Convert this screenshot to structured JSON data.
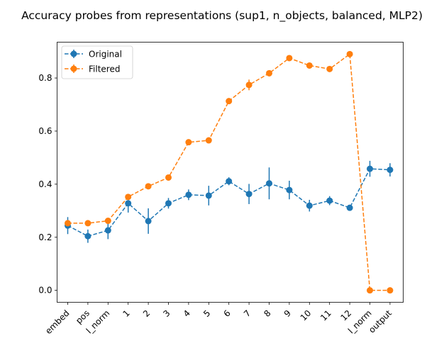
{
  "chart_data": {
    "type": "line",
    "title": "Accuracy probes from representations (sup1, n_objects, balanced, MLP2)",
    "xlabel": "",
    "ylabel": "",
    "categories": [
      "embed",
      "pos",
      "l_norm",
      "1",
      "2",
      "3",
      "4",
      "5",
      "6",
      "7",
      "8",
      "9",
      "10",
      "11",
      "12",
      "l_norm",
      "output"
    ],
    "ylim": [
      -0.045,
      0.935
    ],
    "yticks": [
      0.0,
      0.2,
      0.4,
      0.6,
      0.8
    ],
    "ytick_labels": [
      "0.0",
      "0.2",
      "0.4",
      "0.6",
      "0.8"
    ],
    "grid": false,
    "legend_position": "top-left",
    "series": [
      {
        "name": "Original",
        "color": "#1f77b4",
        "marker": "circle",
        "linestyle": "dashed",
        "values": [
          0.244,
          0.204,
          0.226,
          0.328,
          0.261,
          0.328,
          0.36,
          0.357,
          0.411,
          0.363,
          0.403,
          0.378,
          0.319,
          0.338,
          0.311,
          0.458,
          0.454
        ],
        "errors": [
          0.032,
          0.025,
          0.033,
          0.035,
          0.048,
          0.02,
          0.02,
          0.037,
          0.015,
          0.038,
          0.06,
          0.035,
          0.022,
          0.017,
          0.01,
          0.03,
          0.025
        ]
      },
      {
        "name": "Filtered",
        "color": "#ff7f0e",
        "marker": "circle",
        "linestyle": "dashed",
        "values": [
          0.253,
          0.253,
          0.262,
          0.352,
          0.392,
          0.425,
          0.558,
          0.565,
          0.713,
          0.774,
          0.818,
          0.875,
          0.847,
          0.834,
          0.89,
          0.0,
          0.0
        ],
        "errors": [
          0.008,
          0.006,
          0.008,
          0.01,
          0.008,
          0.008,
          0.008,
          0.008,
          0.008,
          0.02,
          0.008,
          0.008,
          0.008,
          0.008,
          0.008,
          0.003,
          0.003
        ]
      }
    ]
  }
}
